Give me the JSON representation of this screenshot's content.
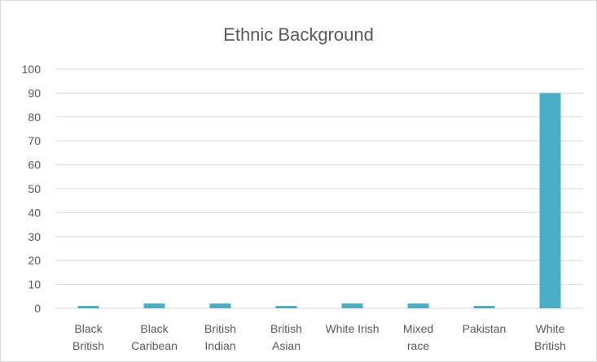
{
  "chart_data": {
    "type": "bar",
    "title": "Ethnic Background",
    "xlabel": "",
    "ylabel": "",
    "categories": [
      [
        "Black",
        "British"
      ],
      [
        "Black",
        "Caribean"
      ],
      [
        "British",
        "Indian"
      ],
      [
        "British",
        "Asian"
      ],
      [
        "White Irish"
      ],
      [
        "Mixed",
        "race"
      ],
      [
        "Pakistan"
      ],
      [
        "White",
        "British"
      ]
    ],
    "values": [
      1,
      2,
      2,
      1,
      2,
      2,
      1,
      90
    ],
    "ylim": [
      0,
      100
    ],
    "yticks": [
      "0",
      "10",
      "20",
      "30",
      "40",
      "50",
      "60",
      "70",
      "80",
      "90",
      "100"
    ],
    "grid": true,
    "legend": "none",
    "colors": {
      "bar": "#4bacc6",
      "grid": "#d9d9d9",
      "text": "#595959"
    }
  }
}
